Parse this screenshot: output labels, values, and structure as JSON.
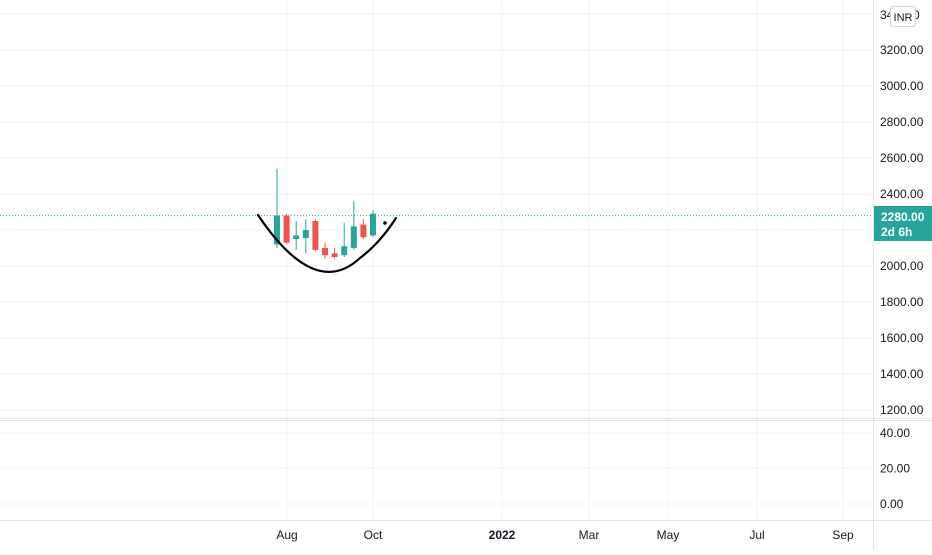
{
  "chart_data": {
    "type": "candlestick",
    "currency": "INR",
    "price_axis": {
      "ticks": [
        1200,
        1400,
        1600,
        1800,
        2000,
        2400,
        2600,
        2800,
        3000,
        3200
      ],
      "tick_labels": [
        "1200.00",
        "1400.00",
        "1600.00",
        "1800.00",
        "2000.00",
        "2400.00",
        "2600.00",
        "2800.00",
        "3000.00",
        "3200.00"
      ],
      "top_partial_label": "34",
      "top_partial_label_end": "0",
      "range": [
        1100,
        3400
      ]
    },
    "indicator_axis": {
      "tick_labels": [
        "40.00",
        "20.00",
        "0.00"
      ],
      "ticks": [
        40,
        20,
        0
      ]
    },
    "time_axis": {
      "labels": [
        "Aug",
        "Oct",
        "2022",
        "Mar",
        "May",
        "Jul",
        "Sep"
      ],
      "bold": [
        false,
        false,
        true,
        false,
        false,
        false,
        false
      ],
      "dates": [
        "2021-08-01",
        "2021-10-01",
        "2022-01-01",
        "2022-03-01",
        "2022-05-01",
        "2022-07-01",
        "2022-09-01"
      ]
    },
    "last_price": {
      "value": 2280,
      "label": "2280.00",
      "countdown": "2d 6h"
    },
    "candles": [
      {
        "open": 2120,
        "high": 2540,
        "low": 2100,
        "close": 2280,
        "dir": "up"
      },
      {
        "open": 2280,
        "high": 2290,
        "low": 2120,
        "close": 2130,
        "dir": "down"
      },
      {
        "open": 2150,
        "high": 2250,
        "low": 2090,
        "close": 2170,
        "dir": "up"
      },
      {
        "open": 2155,
        "high": 2260,
        "low": 2070,
        "close": 2200,
        "dir": "up"
      },
      {
        "open": 2250,
        "high": 2260,
        "low": 2080,
        "close": 2090,
        "dir": "down"
      },
      {
        "open": 2100,
        "high": 2130,
        "low": 2040,
        "close": 2060,
        "dir": "down"
      },
      {
        "open": 2070,
        "high": 2100,
        "low": 2040,
        "close": 2050,
        "dir": "down"
      },
      {
        "open": 2060,
        "high": 2240,
        "low": 2050,
        "close": 2110,
        "dir": "up"
      },
      {
        "open": 2100,
        "high": 2360,
        "low": 2090,
        "close": 2220,
        "dir": "up"
      },
      {
        "open": 2230,
        "high": 2260,
        "low": 2150,
        "close": 2160,
        "dir": "down"
      },
      {
        "open": 2170,
        "high": 2310,
        "low": 2160,
        "close": 2290,
        "dir": "up"
      }
    ],
    "annotation": "cup-shaped curve drawn under the candles",
    "grid": true,
    "colors": {
      "up": "#26a69a",
      "down": "#ef5350",
      "last_price_line": "#26a69a",
      "grid": "#f0f3fa",
      "axis_text": "#131722"
    }
  }
}
